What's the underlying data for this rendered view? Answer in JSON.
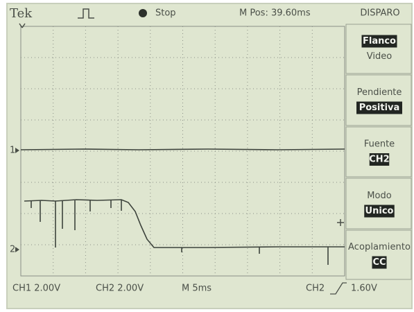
{
  "header": {
    "brand": "Tek",
    "status": "Stop",
    "position": "M Pos: 39.60ms",
    "menu_title": "DISPARO"
  },
  "menu": [
    {
      "lines": [
        {
          "text": "Flanco",
          "selected": true
        },
        {
          "text": "Video",
          "selected": false
        }
      ]
    },
    {
      "lines": [
        {
          "text": "Pendiente",
          "selected": false
        },
        {
          "text": "Positiva",
          "selected": true
        }
      ]
    },
    {
      "lines": [
        {
          "text": "Fuente",
          "selected": false
        },
        {
          "text": "CH2",
          "selected": true
        }
      ]
    },
    {
      "lines": [
        {
          "text": "Modo",
          "selected": false
        },
        {
          "text": "Unico",
          "selected": true
        }
      ]
    },
    {
      "lines": [
        {
          "text": "Acoplamiento",
          "selected": false
        },
        {
          "text": "CC",
          "selected": true
        }
      ]
    }
  ],
  "channel_markers": [
    "1",
    "2"
  ],
  "footer": {
    "ch1": "CH1 2.00V",
    "ch2": "CH2 2.00V",
    "timebase": "M 5ms",
    "trigger_source": "CH2",
    "trigger_level": "1.60V"
  }
}
